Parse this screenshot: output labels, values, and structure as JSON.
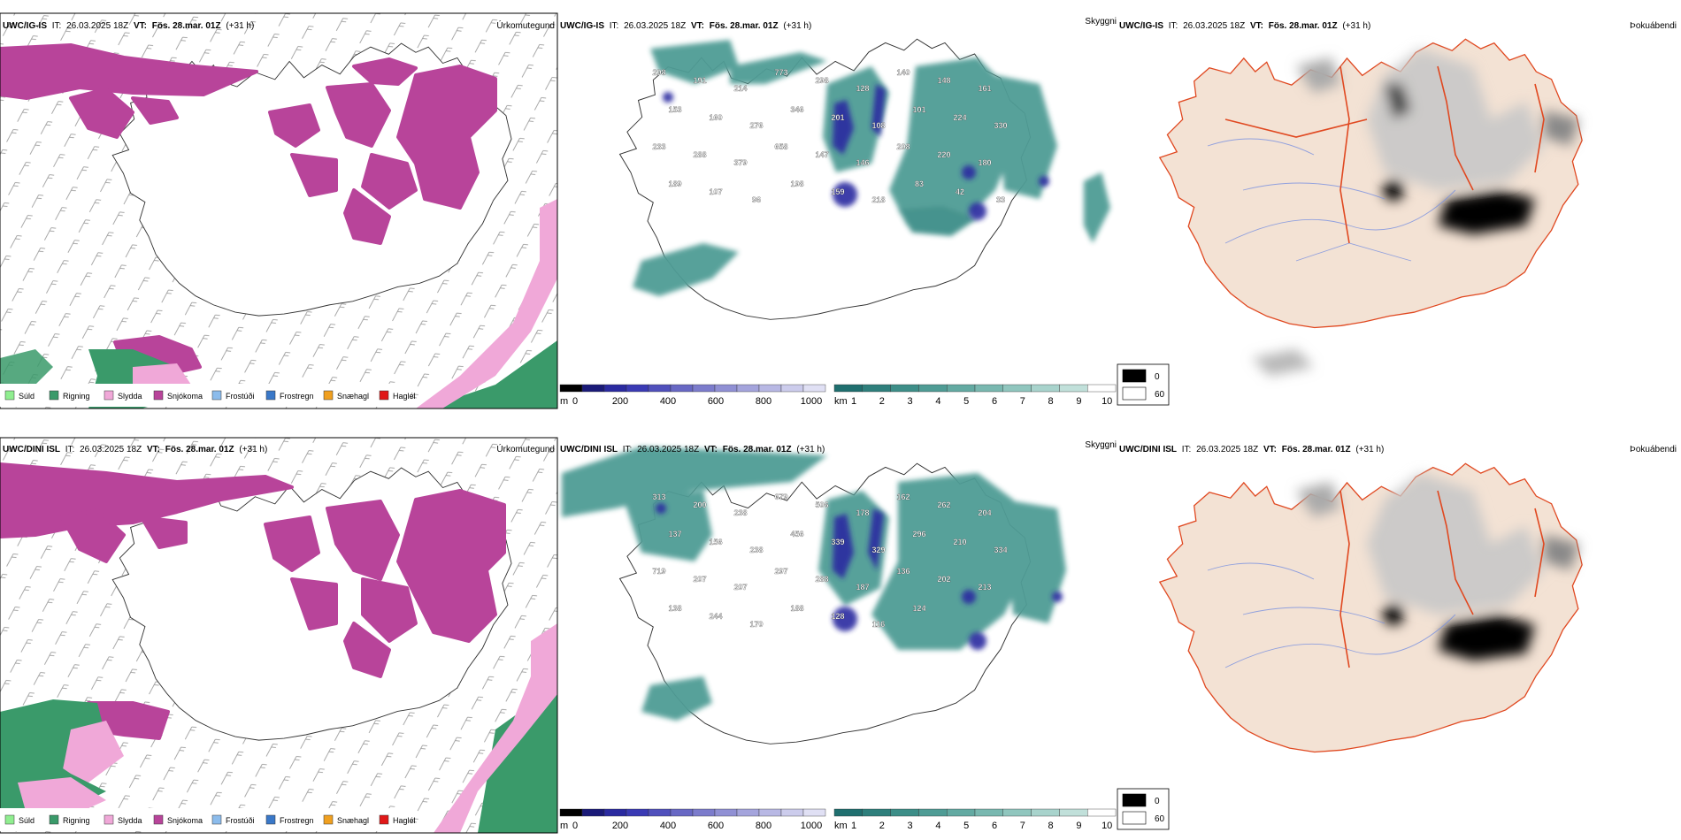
{
  "rows": [
    {
      "precip": {
        "model": "UWC/IG-IS",
        "it_label": "IT:",
        "it_value": "26.03.2025 18Z",
        "vt_label": "VT:",
        "vt_value": "Fös. 28.mar. 01Z",
        "lead": "(+31 h)",
        "title": "Úrkomutegund"
      },
      "cloud": {
        "model": "UWC/IG-IS",
        "it_label": "IT:",
        "it_value": "26.03.2025 18Z",
        "vt_label": "VT:",
        "vt_value": "Fös. 28.mar. 01Z",
        "lead": "(+31 h)",
        "title": "Skyggni",
        "labels": [
          "298",
          "191",
          "214",
          "773",
          "298",
          "128",
          "140",
          "148",
          "161",
          "153",
          "160",
          "276",
          "346",
          "201",
          "108",
          "101",
          "224",
          "330",
          "233",
          "288",
          "379",
          "658",
          "147",
          "146",
          "208",
          "220",
          "180",
          "189",
          "107",
          "96",
          "198",
          "159",
          "218",
          "83",
          "42",
          "33"
        ]
      },
      "fog": {
        "model": "UWC/IG-IS",
        "it_label": "IT:",
        "it_value": "26.03.2025 18Z",
        "vt_label": "VT:",
        "vt_value": "Fös. 28.mar. 01Z",
        "lead": "(+31 h)",
        "title": "Þokuábendi"
      }
    },
    {
      "precip": {
        "model": "UWC/DINI ISL",
        "it_label": "IT:",
        "it_value": "26.03.2025 18Z",
        "vt_label": "VT:",
        "vt_value": "Fös. 28.mar. 01Z",
        "lead": "(+31 h)",
        "title": "Úrkomutegund"
      },
      "cloud": {
        "model": "UWC/DINI ISL",
        "it_label": "IT:",
        "it_value": "26.03.2025 18Z",
        "vt_label": "VT:",
        "vt_value": "Fös. 28.mar. 01Z",
        "lead": "(+31 h)",
        "title": "Skyggni",
        "labels": [
          "313",
          "200",
          "238",
          "679",
          "506",
          "178",
          "162",
          "262",
          "204",
          "137",
          "156",
          "238",
          "456",
          "339",
          "329",
          "296",
          "210",
          "334",
          "719",
          "207",
          "207",
          "297",
          "288",
          "187",
          "136",
          "202",
          "213",
          "138",
          "244",
          "170",
          "188",
          "128",
          "116",
          "124"
        ]
      },
      "fog": {
        "model": "UWC/DINI ISL",
        "it_label": "IT:",
        "it_value": "26.03.2025 18Z",
        "vt_label": "VT:",
        "vt_value": "Fös. 28.mar. 01Z",
        "lead": "(+31 h)",
        "title": "Þokuábendi"
      }
    }
  ],
  "precip_legend": [
    {
      "label": "Súld",
      "color": "#90ee90"
    },
    {
      "label": "Rigning",
      "color": "#3a9a6a"
    },
    {
      "label": "Slydda",
      "color": "#f0a8d8"
    },
    {
      "label": "Snjókoma",
      "color": "#b8449a"
    },
    {
      "label": "Frostúði",
      "color": "#8cbcec"
    },
    {
      "label": "Frostregn",
      "color": "#3a78c8"
    },
    {
      "label": "Snæhagl",
      "color": "#f0a020"
    },
    {
      "label": "Haglél",
      "color": "#e01818"
    }
  ],
  "height_scale": {
    "unit": "m",
    "ticks": [
      "0",
      "200",
      "400",
      "600",
      "800",
      "1000"
    ],
    "colors": [
      "#000000",
      "#1a1a78",
      "#2a2aa0",
      "#3a3ab4",
      "#5050bc",
      "#6868c4",
      "#7c7ccc",
      "#9090d4",
      "#a4a4dc",
      "#b8b8e4",
      "#ccccec",
      "#e0e0f4"
    ]
  },
  "vis_scale": {
    "unit": "km",
    "ticks": [
      "1",
      "2",
      "3",
      "4",
      "5",
      "6",
      "7",
      "8",
      "9",
      "10"
    ],
    "colors": [
      "#1f6f6f",
      "#2e7f7c",
      "#3d8e88",
      "#4f9c95",
      "#63aaa2",
      "#79b8b0",
      "#90c6be",
      "#a8d3cc",
      "#c1e0da",
      "#ffffff"
    ]
  },
  "fog_legend": [
    {
      "label": "0",
      "color": "#000000"
    },
    {
      "label": "60",
      "color": "#ffffff"
    }
  ],
  "colors": {
    "snow": "#b8449a",
    "rain": "#3a9a6a",
    "sleet": "#f0a8d8",
    "cloud_teal": "#4f9c95",
    "cloud_blue": "#2a2aa0",
    "roads": "#e07820",
    "land_fog": "#f3e2d4",
    "fog_river": "#7890e0",
    "fog_lines": "#e04820"
  }
}
